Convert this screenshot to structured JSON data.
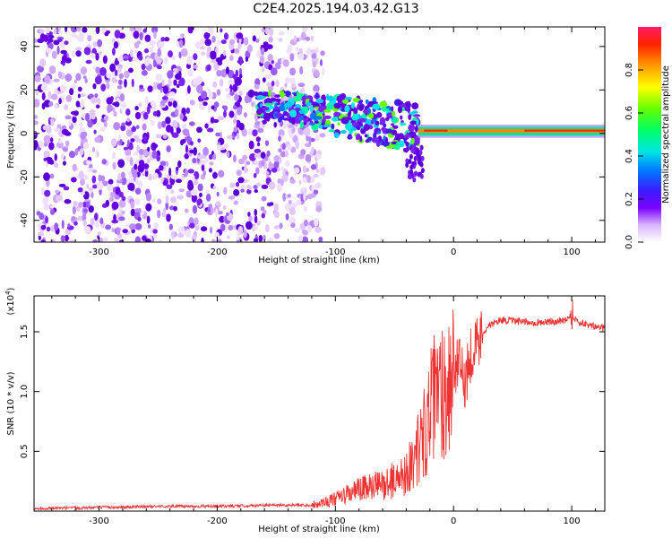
{
  "title": "C2E4.2025.194.03.42.G13",
  "chart_data": [
    {
      "type": "heatmap",
      "xlabel": "Height of straight line (km)",
      "ylabel": "Frequency (Hz)",
      "xlim": [
        -355,
        128
      ],
      "ylim": [
        -50,
        49
      ],
      "x_ticks": [
        "-300",
        "-200",
        "-100",
        "0",
        "100"
      ],
      "y_ticks": [
        "40",
        "20",
        "0",
        "-20",
        "-40"
      ],
      "colorbar": {
        "label": "Normalized spectral amplitude",
        "range": [
          0,
          1
        ],
        "ticks": [
          "0.0",
          "0.2",
          "0.4",
          "0.6",
          "0.8"
        ]
      },
      "regions": [
        {
          "x": [
            -355,
            -125
          ],
          "y": [
            -50,
            49
          ],
          "amplitude": 0.15,
          "pattern": "speckle"
        },
        {
          "x": [
            -165,
            -30
          ],
          "y": [
            -22,
            18
          ],
          "amplitude": 0.35,
          "pattern": "clusters, frequency decreasing with height"
        },
        {
          "x": [
            -30,
            128
          ],
          "y": [
            0,
            2
          ],
          "amplitude": 0.9,
          "pattern": "narrow line near 1 Hz"
        }
      ]
    },
    {
      "type": "line",
      "xlabel": "Height of straight line (km)",
      "ylabel": "SNR (10 * v/v)",
      "yscale_label": "(x10",
      "yscale_exp": "4",
      "xlim": [
        -355,
        128
      ],
      "ylim": [
        0,
        1.8
      ],
      "x_ticks": [
        "-300",
        "-200",
        "-100",
        "0",
        "100"
      ],
      "y_ticks": [
        "1.5",
        "1.0",
        "0.5"
      ],
      "series": [
        {
          "color": "#ee3333",
          "x": [
            -355,
            -300,
            -250,
            -200,
            -150,
            -120,
            -100,
            -80,
            -60,
            -45,
            -35,
            -25,
            -18,
            -12,
            -5,
            0,
            5,
            10,
            15,
            20,
            25,
            30,
            40,
            60,
            80,
            95,
            100,
            105,
            115,
            128
          ],
          "y": [
            0.02,
            0.03,
            0.04,
            0.04,
            0.05,
            0.05,
            0.1,
            0.18,
            0.22,
            0.28,
            0.4,
            0.65,
            0.9,
            1.0,
            1.05,
            1.2,
            1.2,
            1.1,
            1.35,
            1.4,
            1.5,
            1.55,
            1.6,
            1.58,
            1.58,
            1.6,
            1.65,
            1.58,
            1.55,
            1.53
          ]
        }
      ]
    }
  ]
}
